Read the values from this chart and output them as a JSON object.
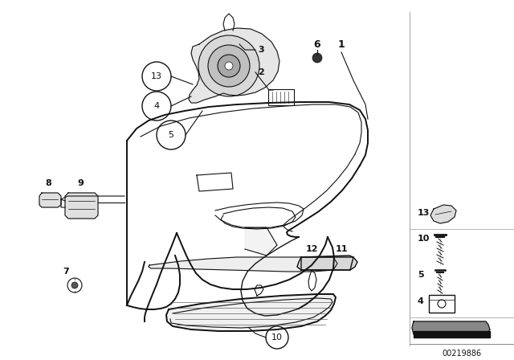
{
  "bg_color": "#ffffff",
  "fig_width": 6.4,
  "fig_height": 4.48,
  "diagram_id": "00219886",
  "line_color": "#111111",
  "lw_main": 1.4,
  "lw_thin": 0.8,
  "lw_med": 1.0
}
